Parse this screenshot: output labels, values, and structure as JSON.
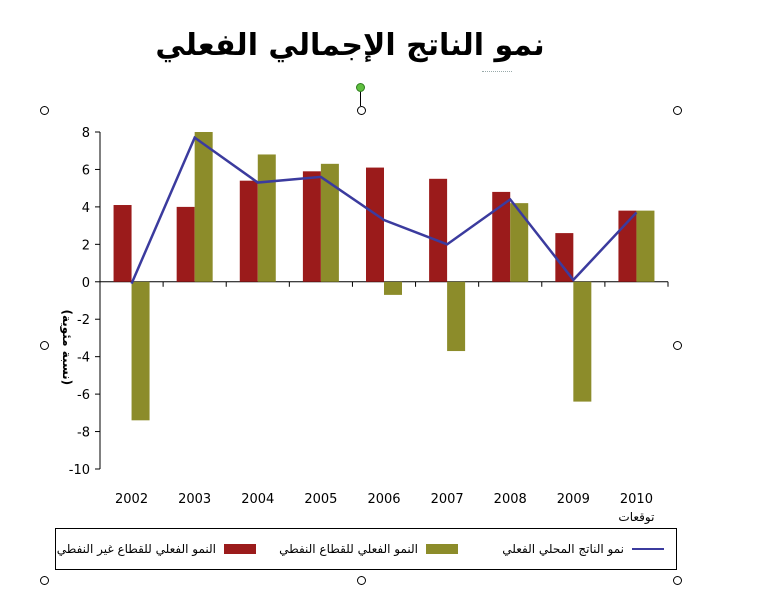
{
  "title": "نمو الناتج الإجمالي الفعلي",
  "colors": {
    "non_oil": "#9b1b1b",
    "oil": "#8c8c2a",
    "total": "#3b3b9e"
  },
  "legend": {
    "non_oil_label": "النمو الفعلي للقطاع غير النفطي",
    "oil_label": "النمو الفعلي للقطاع النفطي",
    "total_label": "نمو الناتج المحلي الفعلي"
  },
  "chart_data": {
    "type": "bar",
    "title": "نمو الناتج الإجمالي الفعلي",
    "ylabel": "(نسبة مئوية)",
    "xlabel": "",
    "categories": [
      "2002",
      "2003",
      "2004",
      "2005",
      "2006",
      "2007",
      "2008",
      "2009",
      "2010"
    ],
    "x_note": "توقعات",
    "ylim": [
      -10,
      8
    ],
    "yticks": [
      -10,
      -8,
      -6,
      -4,
      -2,
      0,
      2,
      4,
      6,
      8
    ],
    "grid": false,
    "legend_position": "bottom",
    "series": [
      {
        "name": "النمو الفعلي للقطاع غير النفطي",
        "kind": "bar",
        "color": "#9b1b1b",
        "values": [
          4.1,
          4.0,
          5.4,
          5.9,
          6.1,
          5.5,
          4.8,
          2.6,
          3.8
        ]
      },
      {
        "name": "النمو الفعلي للقطاع النفطي",
        "kind": "bar",
        "color": "#8c8c2a",
        "values": [
          -7.4,
          8.0,
          6.8,
          6.3,
          -0.7,
          -3.7,
          4.2,
          -6.4,
          3.8
        ]
      },
      {
        "name": "نمو الناتج المحلي الفعلي",
        "kind": "line",
        "color": "#3b3b9e",
        "values": [
          -0.1,
          7.7,
          5.3,
          5.6,
          3.3,
          2.0,
          4.4,
          0.1,
          3.7
        ]
      }
    ]
  }
}
